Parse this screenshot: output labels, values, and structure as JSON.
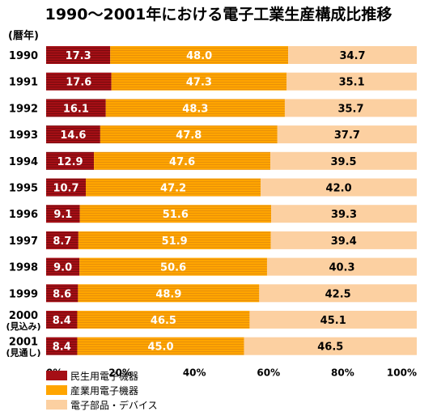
{
  "chart_data": {
    "type": "bar",
    "orientation": "horizontal",
    "stacked": "percent",
    "title": "1990～2001年における電子工業生産構成比推移",
    "unit_label": "(暦年)",
    "categories": [
      {
        "label": "1990"
      },
      {
        "label": "1991"
      },
      {
        "label": "1992"
      },
      {
        "label": "1993"
      },
      {
        "label": "1994"
      },
      {
        "label": "1995"
      },
      {
        "label": "1996"
      },
      {
        "label": "1997"
      },
      {
        "label": "1998"
      },
      {
        "label": "1999"
      },
      {
        "label": "2000",
        "sub": "(見込み)"
      },
      {
        "label": "2001",
        "sub": "(見通し)"
      }
    ],
    "series": [
      {
        "name": "民生用電子機器",
        "color": "#a50f15",
        "label_color": "white",
        "values": [
          "17.3",
          "17.6",
          "16.1",
          "14.6",
          "12.9",
          "10.7",
          "9.1",
          "8.7",
          "9.0",
          "8.6",
          "8.4",
          "8.4"
        ]
      },
      {
        "name": "産業用電子機器",
        "color": "#ffa500",
        "label_color": "white",
        "values": [
          "48.0",
          "47.3",
          "48.3",
          "47.8",
          "47.6",
          "47.2",
          "51.6",
          "51.9",
          "50.6",
          "48.9",
          "46.5",
          "45.0"
        ]
      },
      {
        "name": "電子部品・デバイス",
        "color": "#fcd0a1",
        "label_color": "dark",
        "values": [
          "34.7",
          "35.1",
          "35.7",
          "37.7",
          "39.5",
          "42.0",
          "39.3",
          "39.4",
          "40.3",
          "42.5",
          "45.1",
          "46.5"
        ]
      }
    ],
    "x_ticks": [
      "0%",
      "20%",
      "40%",
      "60%",
      "80%",
      "100%"
    ],
    "xlim": [
      0,
      100
    ],
    "grid": false,
    "legend_position": "bottom-left"
  }
}
